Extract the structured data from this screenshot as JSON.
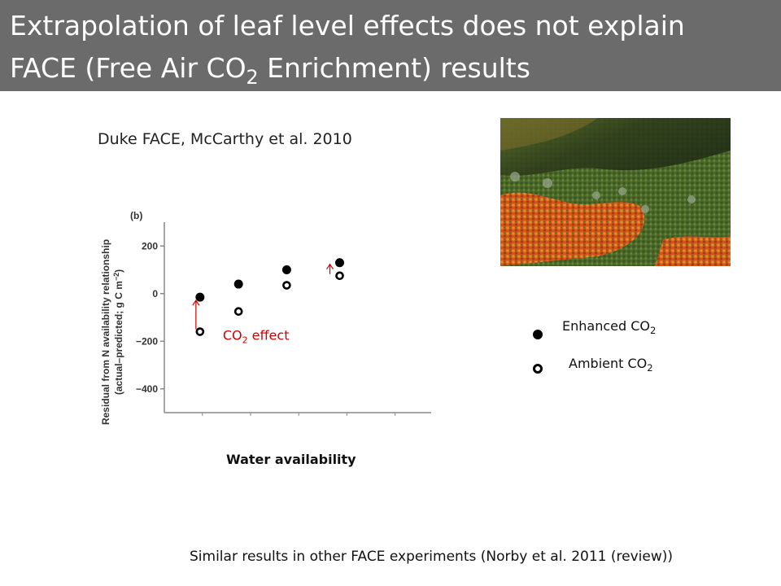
{
  "title": {
    "line1": "Extrapolation of leaf level effects does not explain",
    "line2_pre": "FACE (Free Air CO",
    "line2_sub": "2",
    "line2_post": " Enrichment) results"
  },
  "caption": "Duke FACE, McCarthy et al. 2010",
  "chart_data": {
    "type": "scatter",
    "panel_label": "(b)",
    "ylabel_line1": "Residual from N availability relationship",
    "ylabel_line2": "(actual–predicted; g C m",
    "ylabel_sup": "−2",
    "ylabel_close": ")",
    "xlabel": "Water availability",
    "ylim": [
      -500,
      300
    ],
    "yticks": [
      200,
      0,
      -200,
      -400
    ],
    "ytick_labels": [
      "200",
      "0",
      "−200",
      "−400"
    ],
    "xlim": [
      0,
      5
    ],
    "series": [
      {
        "name": "Enhanced CO₂",
        "x": [
          0.2,
          1.0,
          2.0,
          3.1
        ],
        "y": [
          -15,
          40,
          100,
          130
        ]
      },
      {
        "name": "Ambient CO₂",
        "x": [
          0.2,
          1.0,
          2.0,
          3.1
        ],
        "y": [
          -160,
          -75,
          35,
          75
        ]
      }
    ],
    "annotation": {
      "pre": "CO",
      "sub": "2",
      "post": " effect"
    },
    "colors": {
      "points": "#000000",
      "annotation": "#cc0000"
    }
  },
  "legend": {
    "enhanced": {
      "pre": "Enhanced CO",
      "sub": "2"
    },
    "ambient": {
      "pre": "Ambient CO",
      "sub": "2"
    }
  },
  "footer": "Similar results in other FACE experiments (Norby et al. 2011 (review))"
}
